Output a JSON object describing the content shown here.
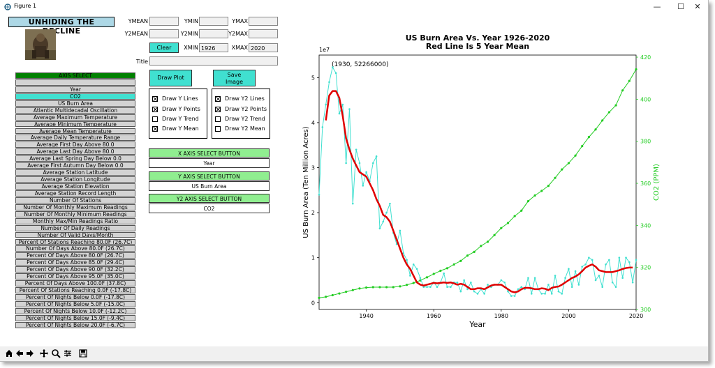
{
  "window": {
    "title": "Figure 1",
    "minimize": "—",
    "maximize": "☐",
    "close": "✕"
  },
  "app": {
    "heading": "UNHIDING THE DECLINE"
  },
  "fields": {
    "ymean_label": "YMEAN",
    "ymean_value": "",
    "ymin_label": "YMIN",
    "ymin_value": "",
    "ymax_label": "YMAX",
    "ymax_value": "",
    "y2mean_label": "Y2MEAN",
    "y2mean_value": "",
    "y2min_label": "Y2MIN",
    "y2min_value": "",
    "y2max_label": "Y2MAX",
    "y2max_value": "",
    "clear_label": "Clear",
    "xmin_label": "XMIN",
    "xmin_value": "1926",
    "xmax_label": "XMAX",
    "xmax_value": "2020",
    "title_label": "Title",
    "title_value": ""
  },
  "buttons": {
    "draw_plot": "Draw Plot",
    "save_image_1": "Save",
    "save_image_2": "Image"
  },
  "y_options": [
    {
      "label": "Draw Y Lines",
      "checked": true
    },
    {
      "label": "Draw Y Points",
      "checked": true
    },
    {
      "label": "Draw Y Trend",
      "checked": false
    },
    {
      "label": "Draw Y Mean",
      "checked": true
    }
  ],
  "y2_options": [
    {
      "label": "Draw Y2 Lines",
      "checked": true
    },
    {
      "label": "Draw Y2 Points",
      "checked": true
    },
    {
      "label": "Draw Y2 Trend",
      "checked": false
    },
    {
      "label": "Draw Y2 Mean",
      "checked": false
    }
  ],
  "axis_select": {
    "header": "AXIS SELECT",
    "selected": "CO2",
    "items": [
      "",
      "Year",
      "CO2",
      "US Burn Area",
      "Atlantic Multidecadal Oscillation",
      "Average Maximum Temperature",
      "Average Minimum Temperature",
      "Average Mean Temperature",
      "Average Daily Temperature Range",
      "Average First Day Above 80.0",
      "Average Last Day Above 80.0",
      "Average Last Spring Day Below 0.0",
      "Average First Autumn Day Below 0.0",
      "Average Station Latitude",
      "Average Station Longitude",
      "Average Station Elevation",
      "Average Station Record Length",
      "Number Of Stations",
      "Number Of Monthly Maximum Readings",
      "Number Of Monthly Minimum Readings",
      "Monthly Max/Min Readings Ratio",
      "Number Of Daily Readings",
      "Number Of Valid Days/Month",
      "Percent Of Stations Reaching 80.0F (26.7C)",
      "Number Of Days Above 80.0F (26.7C)",
      "Percent Of Days Above 80.0F (26.7C)",
      "Percent Of Days Above 85.0F (29.4C)",
      "Percent Of Days Above 90.0F (32.2C)",
      "Percent Of Days Above 95.0F (35.0C)",
      "Percent Of Days Above 100.0F (37.8C)",
      "Percent Of Stations Reaching 0.0F (-17.8C)",
      "Percent Of Nights Below 0.0F (-17.8C)",
      "Percent Of Nights Below 5.0F (-15.0C)",
      "Percent Of Nights Below 10.0F (-12.2C)",
      "Percent Of Nights Below 15.0F (-9.4C)",
      "Percent Of Nights Below 20.0F (-6.7C)"
    ]
  },
  "axis_buttons": {
    "x_label": "X AXIS SELECT BUTTON",
    "x_value": "Year",
    "y_label": "Y AXIS SELECT BUTTON",
    "y_value": "US Burn Area",
    "y2_label": "Y2 AXIS SELECT BUTTON",
    "y2_value": "CO2"
  },
  "toolbar": [
    "home-icon",
    "back-icon",
    "forward-icon",
    "pan-icon",
    "zoom-icon",
    "configure-icon",
    "save-icon"
  ],
  "chart_data": {
    "type": "line",
    "title": "US Burn Area Vs. Year 1926-2020",
    "subtitle": "Red Line Is 5 Year Mean",
    "xlabel": "Year",
    "ylabel": "US Burn Area (Ten Million Acres)",
    "y2label": "CO2 (PPM)",
    "y_offset_label": "1e7",
    "annotation": "(1930, 52266000)",
    "xlim": [
      1926,
      2020
    ],
    "ylim": [
      -0.15,
      5.5
    ],
    "y2lim": [
      300,
      421
    ],
    "xticks": [
      1940,
      1960,
      1980,
      2000,
      2020
    ],
    "yticks": [
      0,
      1,
      2,
      3,
      4,
      5
    ],
    "y2ticks": [
      300,
      320,
      340,
      360,
      380,
      400,
      420
    ],
    "colors": {
      "burn": "#40e0d0",
      "mean": "#e00000",
      "co2": "#22cc22"
    },
    "series": [
      {
        "name": "US Burn Area",
        "axis": "y",
        "x": [
          1926,
          1927,
          1928,
          1929,
          1930,
          1931,
          1932,
          1933,
          1934,
          1935,
          1936,
          1937,
          1938,
          1939,
          1940,
          1941,
          1942,
          1943,
          1944,
          1945,
          1946,
          1947,
          1948,
          1949,
          1950,
          1951,
          1952,
          1953,
          1954,
          1955,
          1956,
          1957,
          1958,
          1959,
          1960,
          1961,
          1962,
          1963,
          1964,
          1965,
          1966,
          1967,
          1968,
          1969,
          1970,
          1971,
          1972,
          1973,
          1974,
          1975,
          1976,
          1977,
          1978,
          1979,
          1980,
          1981,
          1982,
          1983,
          1984,
          1985,
          1986,
          1987,
          1988,
          1989,
          1990,
          1991,
          1992,
          1993,
          1994,
          1995,
          1996,
          1997,
          1998,
          1999,
          2000,
          2001,
          2002,
          2003,
          2004,
          2005,
          2006,
          2007,
          2008,
          2009,
          2010,
          2011,
          2012,
          2013,
          2014,
          2015,
          2016,
          2017,
          2018,
          2019,
          2020
        ],
        "values": [
          2.4,
          3.9,
          4.4,
          4.9,
          5.23,
          5.1,
          4.2,
          4.4,
          3.1,
          4.3,
          2.2,
          3.4,
          3.1,
          2.6,
          2.9,
          2.7,
          3.1,
          3.25,
          1.65,
          1.8,
          2.0,
          2.2,
          1.55,
          1.3,
          1.6,
          1.1,
          0.95,
          0.6,
          0.85,
          0.75,
          0.55,
          0.35,
          0.35,
          0.35,
          0.45,
          0.35,
          0.45,
          0.65,
          0.35,
          0.35,
          0.45,
          0.45,
          0.25,
          0.5,
          0.3,
          0.45,
          0.25,
          0.2,
          0.3,
          0.2,
          0.4,
          0.35,
          0.4,
          0.4,
          0.5,
          0.45,
          0.25,
          0.15,
          0.15,
          0.3,
          0.35,
          0.3,
          0.55,
          0.2,
          0.55,
          0.3,
          0.2,
          0.2,
          0.4,
          0.2,
          0.6,
          0.25,
          0.2,
          0.55,
          0.75,
          0.35,
          0.7,
          0.4,
          0.8,
          0.85,
          1.0,
          0.95,
          0.5,
          0.6,
          0.35,
          0.85,
          0.95,
          0.45,
          0.35,
          1.0,
          0.55,
          1.0,
          0.9,
          0.45,
          0.95
        ]
      },
      {
        "name": "5 Year Mean",
        "axis": "y",
        "x": [
          1928,
          1929,
          1930,
          1931,
          1932,
          1933,
          1934,
          1935,
          1936,
          1937,
          1938,
          1939,
          1940,
          1941,
          1942,
          1943,
          1944,
          1945,
          1946,
          1947,
          1948,
          1949,
          1950,
          1951,
          1952,
          1953,
          1954,
          1955,
          1956,
          1957,
          1958,
          1959,
          1960,
          1961,
          1962,
          1963,
          1964,
          1965,
          1966,
          1967,
          1968,
          1969,
          1970,
          1971,
          1972,
          1973,
          1974,
          1975,
          1976,
          1977,
          1978,
          1979,
          1980,
          1981,
          1982,
          1983,
          1984,
          1985,
          1986,
          1987,
          1988,
          1989,
          1990,
          1991,
          1992,
          1993,
          1994,
          1995,
          1996,
          1997,
          1998,
          1999,
          2000,
          2001,
          2002,
          2003,
          2004,
          2005,
          2006,
          2007,
          2008,
          2009,
          2010,
          2011,
          2012,
          2013,
          2014,
          2015,
          2016,
          2017,
          2018,
          2019
        ],
        "values": [
          4.05,
          4.6,
          4.7,
          4.7,
          4.55,
          4.15,
          3.65,
          3.4,
          3.2,
          3.05,
          2.9,
          2.85,
          2.8,
          2.65,
          2.5,
          2.3,
          2.15,
          1.95,
          1.9,
          1.8,
          1.6,
          1.4,
          1.2,
          1.0,
          0.85,
          0.75,
          0.6,
          0.45,
          0.4,
          0.38,
          0.4,
          0.42,
          0.44,
          0.43,
          0.44,
          0.45,
          0.44,
          0.45,
          0.43,
          0.4,
          0.42,
          0.4,
          0.35,
          0.3,
          0.3,
          0.32,
          0.32,
          0.3,
          0.34,
          0.38,
          0.4,
          0.4,
          0.4,
          0.35,
          0.3,
          0.25,
          0.23,
          0.25,
          0.3,
          0.33,
          0.33,
          0.32,
          0.3,
          0.3,
          0.32,
          0.31,
          0.28,
          0.33,
          0.35,
          0.36,
          0.4,
          0.45,
          0.5,
          0.55,
          0.58,
          0.63,
          0.7,
          0.78,
          0.82,
          0.85,
          0.8,
          0.72,
          0.7,
          0.68,
          0.68,
          0.68,
          0.7,
          0.72,
          0.75,
          0.77,
          0.78,
          0.78
        ]
      },
      {
        "name": "CO2",
        "axis": "y2",
        "x": [
          1926,
          1928,
          1930,
          1932,
          1934,
          1936,
          1938,
          1940,
          1942,
          1944,
          1946,
          1948,
          1950,
          1952,
          1954,
          1956,
          1958,
          1960,
          1962,
          1964,
          1966,
          1968,
          1970,
          1972,
          1974,
          1976,
          1978,
          1980,
          1982,
          1984,
          1986,
          1988,
          1990,
          1992,
          1994,
          1996,
          1998,
          2000,
          2002,
          2004,
          2006,
          2008,
          2010,
          2012,
          2014,
          2016,
          2018,
          2020
        ],
        "values": [
          305.5,
          306.0,
          306.8,
          307.6,
          308.4,
          309.2,
          310.0,
          310.4,
          310.6,
          310.6,
          310.6,
          310.6,
          311.0,
          311.7,
          312.6,
          313.8,
          315.3,
          316.9,
          318.4,
          319.6,
          321.4,
          323.1,
          325.6,
          327.4,
          330.2,
          332.2,
          335.4,
          338.7,
          341.1,
          344.4,
          347.0,
          351.5,
          354.2,
          356.4,
          358.8,
          362.6,
          366.6,
          369.6,
          373.2,
          377.7,
          382.0,
          385.6,
          389.9,
          393.8,
          397.1,
          404.2,
          408.7,
          414.2
        ]
      }
    ]
  }
}
